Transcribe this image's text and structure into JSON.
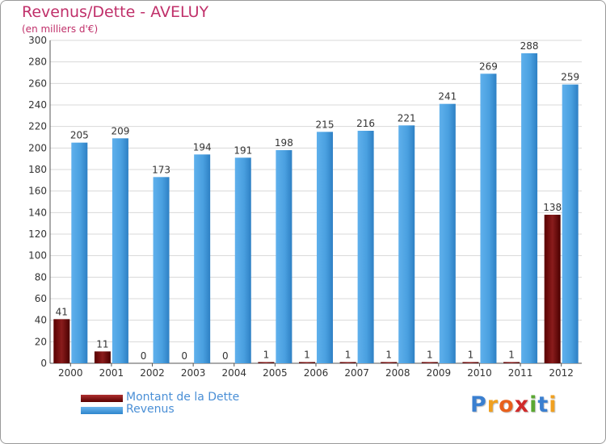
{
  "title": "Revenus/Dette - AVELUY",
  "subtitle": "(en milliers d'€)",
  "colors": {
    "title": "#c0306a",
    "dette": "#7a1010",
    "revenus": "#4aa0e0",
    "legend_text": "#4a8fd6",
    "grid": "#d8d8d8"
  },
  "chart_data": {
    "type": "bar",
    "title": "Revenus/Dette - AVELUY",
    "ylabel": "(en milliers d'€)",
    "xlabel": "",
    "categories": [
      "2000",
      "2001",
      "2002",
      "2003",
      "2004",
      "2005",
      "2006",
      "2007",
      "2008",
      "2009",
      "2010",
      "2011",
      "2012"
    ],
    "series": [
      {
        "name": "Montant de la Dette",
        "color": "#7a1010",
        "values": [
          41,
          11,
          0,
          0,
          0,
          1,
          1,
          1,
          1,
          1,
          1,
          1,
          138
        ]
      },
      {
        "name": "Revenus",
        "color": "#4aa0e0",
        "values": [
          205,
          209,
          173,
          194,
          191,
          198,
          215,
          216,
          221,
          241,
          269,
          288,
          259
        ]
      }
    ],
    "ylim": [
      0,
      300
    ],
    "yticks": [
      0,
      20,
      40,
      60,
      80,
      100,
      120,
      140,
      160,
      180,
      200,
      220,
      240,
      260,
      280,
      300
    ],
    "grid": true,
    "legend": "bottom-left"
  },
  "legend": {
    "items": [
      {
        "label": "Montant de la Dette",
        "color": "#7a1010"
      },
      {
        "label": "Revenus",
        "color": "#4aa0e0"
      }
    ]
  },
  "logo": {
    "letters": [
      {
        "ch": "P",
        "color": "#3a7fd0"
      },
      {
        "ch": "r",
        "color": "#f0a020"
      },
      {
        "ch": "o",
        "color": "#e8601c"
      },
      {
        "ch": "x",
        "color": "#d02a2a"
      },
      {
        "ch": "i",
        "color": "#5aa832"
      },
      {
        "ch": "t",
        "color": "#3a7fd0"
      },
      {
        "ch": "i",
        "color": "#f0a020"
      }
    ]
  }
}
